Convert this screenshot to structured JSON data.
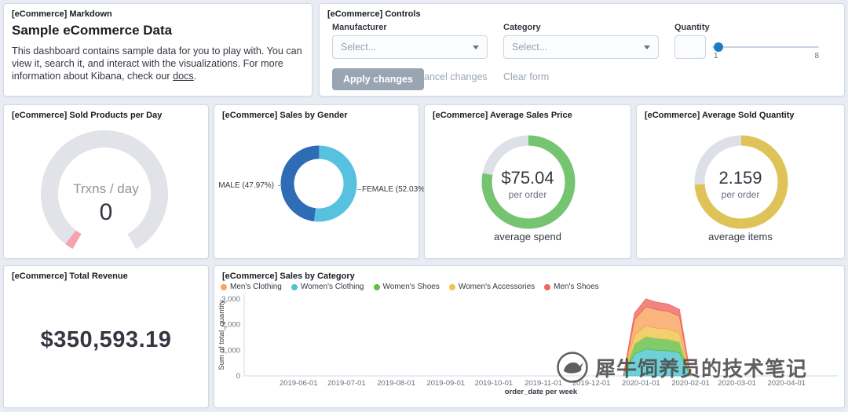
{
  "watermark": {
    "text": "犀牛饲养员的技术笔记"
  },
  "panels": {
    "markdown": {
      "title": "[eCommerce] Markdown",
      "heading": "Sample eCommerce Data",
      "body_before_link": "This dashboard contains sample data for you to play with. You can view it, search it, and interact with the visualizations. For more information about Kibana, check our ",
      "link_text": "docs",
      "body_after_link": "."
    },
    "controls": {
      "title": "[eCommerce] Controls",
      "manufacturer": {
        "label": "Manufacturer",
        "placeholder": "Select..."
      },
      "category": {
        "label": "Category",
        "placeholder": "Select..."
      },
      "quantity": {
        "label": "Quantity",
        "min": "1",
        "max": "8"
      },
      "apply_button": "Apply changes",
      "cancel_button": "Cancel changes",
      "clear_button": "Clear form"
    },
    "sold_products": {
      "title": "[eCommerce] Sold Products per Day",
      "metric_label": "Trxns / day",
      "metric_value": "0"
    },
    "sales_by_gender": {
      "title": "[eCommerce] Sales by Gender",
      "male_label": "MALE (47.97%)",
      "female_label": "FEMALE (52.03%)"
    },
    "avg_sales_price": {
      "title": "[eCommerce] Average Sales Price",
      "value": "$75.04",
      "unit": "per order",
      "caption": "average spend"
    },
    "avg_sold_quantity": {
      "title": "[eCommerce] Average Sold Quantity",
      "value": "2.159",
      "unit": "per order",
      "caption": "average items"
    },
    "total_revenue": {
      "title": "[eCommerce] Total Revenue",
      "value": "$350,593.19"
    },
    "sales_by_category": {
      "title": "[eCommerce] Sales by Category",
      "ylabel": "Sum of total_quantity",
      "xlabel": "order_date per week",
      "legend": [
        {
          "label": "Men's Clothing",
          "color": "#f9a35f"
        },
        {
          "label": "Women's Clothing",
          "color": "#4ec3ce"
        },
        {
          "label": "Women's Shoes",
          "color": "#63be45"
        },
        {
          "label": "Women's Accessories",
          "color": "#efc44c"
        },
        {
          "label": "Men's Shoes",
          "color": "#ed6660"
        }
      ]
    }
  },
  "chart_data": [
    {
      "type": "gauge",
      "title": "[eCommerce] Sold Products per Day",
      "label": "Trxns / day",
      "value": 0,
      "track_color": "#e1e3e8",
      "value_color": "#f5a3ac"
    },
    {
      "type": "pie",
      "title": "[eCommerce] Sales by Gender",
      "slices": [
        {
          "label": "FEMALE",
          "percent": 52.03,
          "color": "#57c1e0"
        },
        {
          "label": "MALE",
          "percent": 47.97,
          "color": "#2e6cb5"
        }
      ]
    },
    {
      "type": "goal",
      "title": "[eCommerce] Average Sales Price",
      "value": 75.04,
      "display": "$75.04",
      "sublabel": "per order",
      "caption": "average spend",
      "fraction": 0.78,
      "color": "#74c470",
      "track_color": "#dde0e6"
    },
    {
      "type": "goal",
      "title": "[eCommerce] Average Sold Quantity",
      "value": 2.159,
      "display": "2.159",
      "sublabel": "per order",
      "caption": "average items",
      "fraction": 0.74,
      "color": "#e0c358",
      "track_color": "#dde0e6"
    },
    {
      "type": "metric",
      "title": "[eCommerce] Total Revenue",
      "value": "$350,593.19"
    },
    {
      "type": "area",
      "title": "[eCommerce] Sales by Category",
      "stacked": true,
      "xlabel": "order_date per week",
      "ylabel": "Sum of total_quantity",
      "x_domain": [
        "2019-04-28",
        "2020-05-03"
      ],
      "x_ticks": [
        "2019-06-01",
        "2019-07-01",
        "2019-08-01",
        "2019-09-01",
        "2019-10-01",
        "2019-11-01",
        "2019-12-01",
        "2020-01-01",
        "2020-02-01",
        "2020-03-01",
        "2020-04-01"
      ],
      "y_ticks": [
        0,
        1000,
        2000,
        3000
      ],
      "ylim": [
        0,
        3200
      ],
      "x": [
        "2019-12-21",
        "2019-12-28",
        "2020-01-04",
        "2020-01-11",
        "2020-01-18",
        "2020-01-25",
        "2020-02-01"
      ],
      "series": [
        {
          "name": "Women's Clothing",
          "color": "#4ec3ce",
          "values": [
            0,
            850,
            1050,
            1000,
            980,
            900,
            0
          ]
        },
        {
          "name": "Women's Shoes",
          "color": "#63be45",
          "values": [
            0,
            400,
            480,
            460,
            450,
            420,
            0
          ]
        },
        {
          "name": "Women's Accessories",
          "color": "#efc44c",
          "values": [
            0,
            350,
            420,
            400,
            390,
            360,
            0
          ]
        },
        {
          "name": "Men's Clothing",
          "color": "#f9a35f",
          "values": [
            0,
            600,
            750,
            720,
            700,
            650,
            0
          ]
        },
        {
          "name": "Men's Shoes",
          "color": "#ed6660",
          "values": [
            0,
            250,
            300,
            290,
            280,
            260,
            0
          ]
        }
      ],
      "legend_position": "top"
    }
  ]
}
